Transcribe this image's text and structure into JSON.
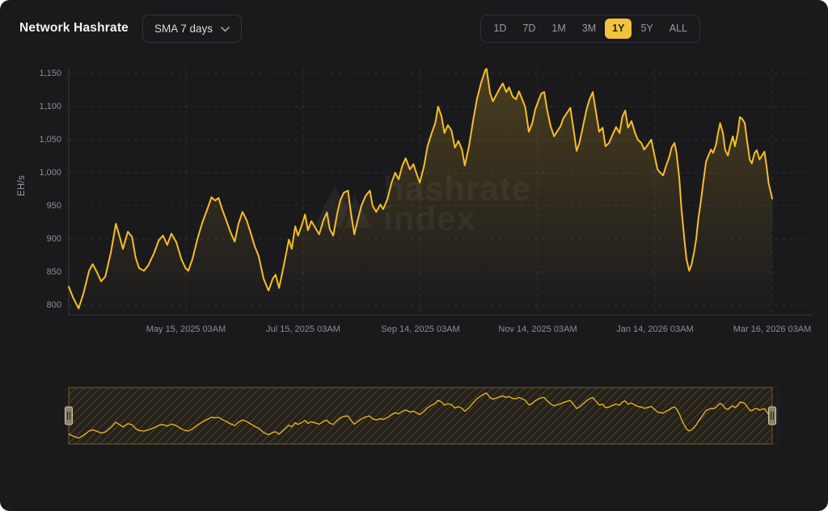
{
  "header": {
    "title": "Network Hashrate",
    "sma_dropdown": {
      "value": "SMA 7 days",
      "icon": "chevron-down-icon"
    },
    "ranges": [
      {
        "label": "1D",
        "active": false
      },
      {
        "label": "7D",
        "active": false
      },
      {
        "label": "1M",
        "active": false
      },
      {
        "label": "3M",
        "active": false
      },
      {
        "label": "1Y",
        "active": true
      },
      {
        "label": "5Y",
        "active": false
      },
      {
        "label": "ALL",
        "active": false
      }
    ]
  },
  "watermark": {
    "line1": "hashrate",
    "line2": "index",
    "icon": "mountain-logo-icon"
  },
  "colors": {
    "background": "#1a1a1d",
    "accent_line": "#f6be26",
    "accent_button": "#f2c33c",
    "area_fill_top": "rgba(246,190,38,0.22)",
    "area_fill_bottom": "rgba(246,190,38,0.0)",
    "grid": "rgba(255,255,255,0.09)",
    "axis": "rgba(255,255,255,0.14)",
    "tick_text": "#8e8e93",
    "hatch": "rgba(246,190,38,0.30)",
    "brush_handle_fill": "#8a8366",
    "brush_handle_border": "#cfc6a5"
  },
  "chart_data": {
    "type": "line",
    "title": "Network Hashrate (SMA 7 days, 1Y range)",
    "xlabel": "",
    "ylabel": "EH/s",
    "ylim": [
      780,
      1170
    ],
    "grid": "dashed",
    "legend_position": "none",
    "y_ticks": [
      {
        "label": "800",
        "value": 800
      },
      {
        "label": "850",
        "value": 850
      },
      {
        "label": "900",
        "value": 900
      },
      {
        "label": "950",
        "value": 950
      },
      {
        "label": "1,000",
        "value": 1000
      },
      {
        "label": "1,050",
        "value": 1050
      },
      {
        "label": "1,100",
        "value": 1100
      },
      {
        "label": "1,150",
        "value": 1150
      }
    ],
    "x_ticks": [
      {
        "label": "May 15, 2025 03AM",
        "f": 0.1667
      },
      {
        "label": "Jul 15, 2025 03AM",
        "f": 0.3333
      },
      {
        "label": "Sep 14, 2025 03AM",
        "f": 0.5
      },
      {
        "label": "Nov 14, 2025 03AM",
        "f": 0.6667
      },
      {
        "label": "Jan 14, 2026 03AM",
        "f": 0.8333
      },
      {
        "label": "Mar 16, 2026 03AM",
        "f": 1.0
      }
    ],
    "series": [
      {
        "name": "Network Hashrate SMA 7 days (EH/s); points are [fraction of 1Y x-range, value]",
        "points": [
          [
            0,
            828
          ],
          [
            0.006,
            812
          ],
          [
            0.014,
            795
          ],
          [
            0.021,
            818
          ],
          [
            0.029,
            852
          ],
          [
            0.034,
            862
          ],
          [
            0.04,
            850
          ],
          [
            0.046,
            836
          ],
          [
            0.052,
            843
          ],
          [
            0.06,
            880
          ],
          [
            0.067,
            923
          ],
          [
            0.072,
            905
          ],
          [
            0.077,
            885
          ],
          [
            0.084,
            911
          ],
          [
            0.09,
            903
          ],
          [
            0.095,
            872
          ],
          [
            0.1,
            856
          ],
          [
            0.107,
            852
          ],
          [
            0.113,
            860
          ],
          [
            0.121,
            878
          ],
          [
            0.128,
            898
          ],
          [
            0.134,
            905
          ],
          [
            0.14,
            891
          ],
          [
            0.146,
            908
          ],
          [
            0.153,
            895
          ],
          [
            0.16,
            870
          ],
          [
            0.166,
            856
          ],
          [
            0.17,
            852
          ],
          [
            0.176,
            870
          ],
          [
            0.183,
            900
          ],
          [
            0.19,
            925
          ],
          [
            0.197,
            945
          ],
          [
            0.203,
            963
          ],
          [
            0.208,
            958
          ],
          [
            0.213,
            962
          ],
          [
            0.218,
            945
          ],
          [
            0.224,
            928
          ],
          [
            0.23,
            910
          ],
          [
            0.236,
            896
          ],
          [
            0.241,
            922
          ],
          [
            0.247,
            941
          ],
          [
            0.253,
            928
          ],
          [
            0.259,
            908
          ],
          [
            0.264,
            890
          ],
          [
            0.27,
            874
          ],
          [
            0.277,
            840
          ],
          [
            0.284,
            822
          ],
          [
            0.29,
            840
          ],
          [
            0.294,
            846
          ],
          [
            0.299,
            826
          ],
          [
            0.305,
            856
          ],
          [
            0.313,
            899
          ],
          [
            0.317,
            885
          ],
          [
            0.322,
            919
          ],
          [
            0.326,
            905
          ],
          [
            0.331,
            920
          ],
          [
            0.336,
            937
          ],
          [
            0.34,
            913
          ],
          [
            0.345,
            927
          ],
          [
            0.351,
            916
          ],
          [
            0.356,
            907
          ],
          [
            0.362,
            928
          ],
          [
            0.367,
            940
          ],
          [
            0.371,
            915
          ],
          [
            0.376,
            905
          ],
          [
            0.382,
            940
          ],
          [
            0.386,
            958
          ],
          [
            0.391,
            970
          ],
          [
            0.397,
            973
          ],
          [
            0.401,
            940
          ],
          [
            0.406,
            907
          ],
          [
            0.41,
            925
          ],
          [
            0.416,
            950
          ],
          [
            0.422,
            965
          ],
          [
            0.428,
            973
          ],
          [
            0.432,
            950
          ],
          [
            0.437,
            941
          ],
          [
            0.443,
            952
          ],
          [
            0.447,
            945
          ],
          [
            0.453,
            960
          ],
          [
            0.459,
            985
          ],
          [
            0.464,
            1000
          ],
          [
            0.469,
            990
          ],
          [
            0.474,
            1010
          ],
          [
            0.479,
            1022
          ],
          [
            0.485,
            1005
          ],
          [
            0.49,
            1013
          ],
          [
            0.494,
            1000
          ],
          [
            0.499,
            985
          ],
          [
            0.505,
            1010
          ],
          [
            0.51,
            1040
          ],
          [
            0.516,
            1060
          ],
          [
            0.521,
            1075
          ],
          [
            0.525,
            1100
          ],
          [
            0.53,
            1085
          ],
          [
            0.534,
            1060
          ],
          [
            0.539,
            1072
          ],
          [
            0.544,
            1064
          ],
          [
            0.549,
            1038
          ],
          [
            0.554,
            1048
          ],
          [
            0.559,
            1035
          ],
          [
            0.563,
            1011
          ],
          [
            0.569,
            1040
          ],
          [
            0.575,
            1080
          ],
          [
            0.58,
            1110
          ],
          [
            0.586,
            1135
          ],
          [
            0.592,
            1155
          ],
          [
            0.594,
            1157
          ],
          [
            0.599,
            1120
          ],
          [
            0.603,
            1108
          ],
          [
            0.608,
            1118
          ],
          [
            0.613,
            1128
          ],
          [
            0.617,
            1135
          ],
          [
            0.622,
            1122
          ],
          [
            0.626,
            1129
          ],
          [
            0.631,
            1115
          ],
          [
            0.636,
            1111
          ],
          [
            0.64,
            1123
          ],
          [
            0.645,
            1110
          ],
          [
            0.649,
            1099
          ],
          [
            0.654,
            1062
          ],
          [
            0.659,
            1075
          ],
          [
            0.663,
            1095
          ],
          [
            0.668,
            1110
          ],
          [
            0.672,
            1120
          ],
          [
            0.676,
            1122
          ],
          [
            0.68,
            1095
          ],
          [
            0.685,
            1070
          ],
          [
            0.69,
            1055
          ],
          [
            0.694,
            1062
          ],
          [
            0.699,
            1070
          ],
          [
            0.703,
            1082
          ],
          [
            0.708,
            1090
          ],
          [
            0.713,
            1098
          ],
          [
            0.717,
            1070
          ],
          [
            0.722,
            1033
          ],
          [
            0.726,
            1045
          ],
          [
            0.731,
            1070
          ],
          [
            0.736,
            1095
          ],
          [
            0.74,
            1110
          ],
          [
            0.745,
            1122
          ],
          [
            0.749,
            1095
          ],
          [
            0.754,
            1062
          ],
          [
            0.759,
            1068
          ],
          [
            0.763,
            1040
          ],
          [
            0.768,
            1045
          ],
          [
            0.772,
            1055
          ],
          [
            0.778,
            1069
          ],
          [
            0.783,
            1060
          ],
          [
            0.787,
            1085
          ],
          [
            0.791,
            1094
          ],
          [
            0.795,
            1068
          ],
          [
            0.8,
            1078
          ],
          [
            0.805,
            1060
          ],
          [
            0.809,
            1050
          ],
          [
            0.814,
            1045
          ],
          [
            0.818,
            1035
          ],
          [
            0.823,
            1042
          ],
          [
            0.828,
            1050
          ],
          [
            0.832,
            1030
          ],
          [
            0.837,
            1005
          ],
          [
            0.841,
            1000
          ],
          [
            0.845,
            996
          ],
          [
            0.849,
            1010
          ],
          [
            0.854,
            1025
          ],
          [
            0.857,
            1038
          ],
          [
            0.861,
            1045
          ],
          [
            0.864,
            1030
          ],
          [
            0.868,
            990
          ],
          [
            0.871,
            945
          ],
          [
            0.875,
            900
          ],
          [
            0.878,
            870
          ],
          [
            0.882,
            852
          ],
          [
            0.885,
            860
          ],
          [
            0.889,
            880
          ],
          [
            0.892,
            900
          ],
          [
            0.895,
            930
          ],
          [
            0.899,
            960
          ],
          [
            0.902,
            985
          ],
          [
            0.906,
            1017
          ],
          [
            0.909,
            1025
          ],
          [
            0.913,
            1035
          ],
          [
            0.916,
            1030
          ],
          [
            0.92,
            1042
          ],
          [
            0.923,
            1060
          ],
          [
            0.926,
            1075
          ],
          [
            0.93,
            1060
          ],
          [
            0.933,
            1035
          ],
          [
            0.937,
            1026
          ],
          [
            0.94,
            1040
          ],
          [
            0.944,
            1055
          ],
          [
            0.947,
            1040
          ],
          [
            0.951,
            1060
          ],
          [
            0.954,
            1084
          ],
          [
            0.957,
            1082
          ],
          [
            0.961,
            1075
          ],
          [
            0.964,
            1050
          ],
          [
            0.968,
            1020
          ],
          [
            0.971,
            1014
          ],
          [
            0.975,
            1030
          ],
          [
            0.978,
            1034
          ],
          [
            0.982,
            1020
          ],
          [
            0.985,
            1025
          ],
          [
            0.989,
            1032
          ],
          [
            0.992,
            1010
          ],
          [
            0.995,
            984
          ],
          [
            1,
            961
          ]
        ]
      }
    ],
    "brush": {
      "selection_start_f": 0,
      "selection_end_f": 1
    }
  }
}
